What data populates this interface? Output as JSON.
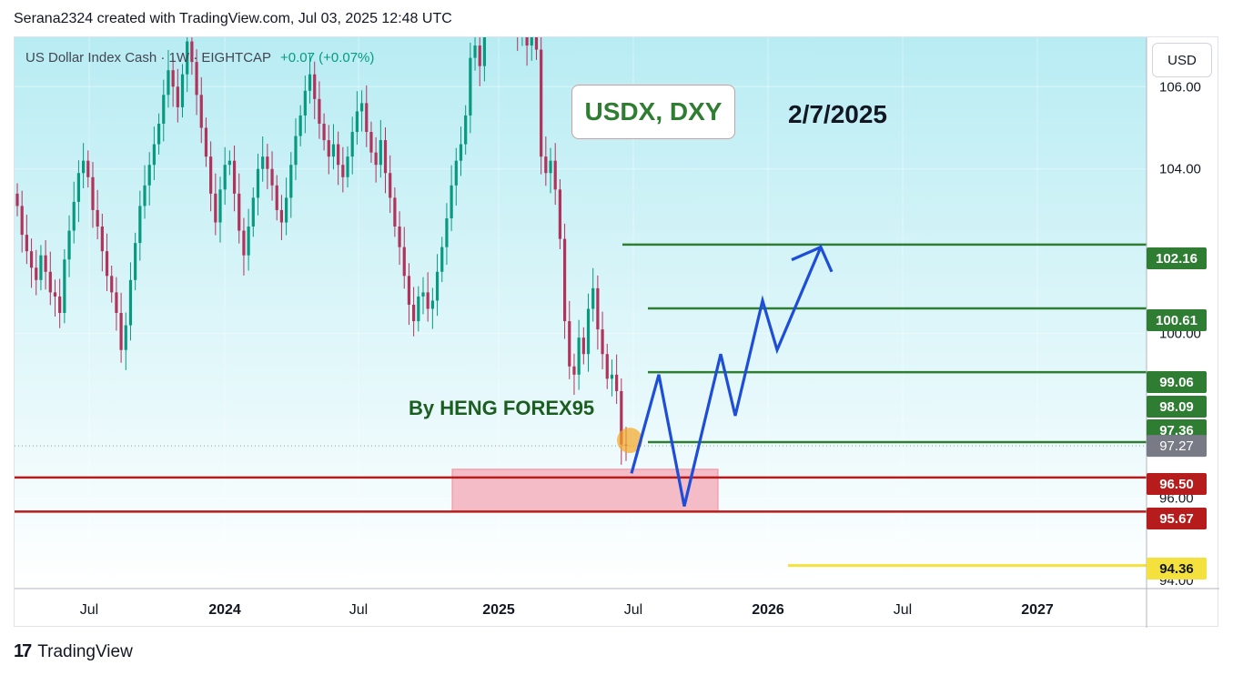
{
  "header": {
    "text": "Serana2324 created with TradingView.com, Jul 03, 2025 12:48 UTC"
  },
  "symbol": {
    "name": "US Dollar Index Cash · 1W · EIGHTCAP",
    "change": "+0.07 (+0.07%)"
  },
  "currency_button": "USD",
  "annotations": {
    "title": "USDX, DXY",
    "date": "2/7/2025",
    "author": "By HENG FOREX95"
  },
  "footer": {
    "logo": "17",
    "brand": "TradingView"
  },
  "colors": {
    "up": "#089981",
    "down": "#b2325a",
    "resistance": "#2e7d32",
    "support": "#b71c1c",
    "target": "#f5e13d",
    "projection": "#1e4ed8",
    "zone": "#f4a7b3",
    "bg_top": "#b8ecf3",
    "bg_bottom": "#ffffff"
  },
  "chart_data": {
    "type": "candlestick",
    "x_axis": {
      "ticks": [
        "Jul",
        "2024",
        "Jul",
        "2025",
        "Jul",
        "2026",
        "Jul",
        "2027"
      ]
    },
    "y_axis": {
      "ticks": [
        "106.00",
        "104.00",
        "100.00",
        "96.00",
        "94.00"
      ],
      "range": [
        93.8,
        107.2
      ]
    },
    "last_price": "97.27",
    "levels": [
      {
        "value": 102.16,
        "label": "102.16",
        "kind": "resistance"
      },
      {
        "value": 100.61,
        "label": "100.61",
        "kind": "resistance"
      },
      {
        "value": 99.06,
        "label": "99.06",
        "kind": "resistance"
      },
      {
        "value": 98.09,
        "label": "98.09",
        "kind": "resistance"
      },
      {
        "value": 97.36,
        "label": "97.36",
        "kind": "resistance"
      },
      {
        "value": 96.5,
        "label": "96.50",
        "kind": "support"
      },
      {
        "value": 95.67,
        "label": "95.67",
        "kind": "support"
      },
      {
        "value": 94.36,
        "label": "94.36",
        "kind": "target"
      }
    ],
    "support_zone": {
      "from": 95.67,
      "to": 96.7,
      "start": "2024-11",
      "end": "2025-10"
    },
    "projection_path": [
      96.6,
      99.0,
      95.8,
      99.5,
      98.0,
      100.8,
      99.6,
      102.1,
      101.5
    ],
    "candles_close": [
      103.1,
      102.4,
      102.0,
      101.6,
      101.3,
      101.9,
      101.5,
      101.0,
      100.9,
      100.5,
      101.8,
      102.5,
      103.2,
      103.9,
      104.2,
      103.8,
      103.0,
      102.6,
      102.0,
      101.4,
      101.0,
      100.5,
      99.6,
      100.2,
      101.3,
      102.2,
      103.1,
      103.6,
      104.1,
      104.6,
      105.1,
      105.8,
      106.4,
      106.0,
      105.5,
      106.3,
      107.1,
      106.6,
      105.8,
      105.0,
      104.3,
      103.4,
      102.7,
      103.5,
      104.1,
      104.2,
      103.4,
      102.5,
      101.9,
      102.6,
      103.3,
      104.0,
      104.3,
      104.0,
      103.6,
      103.0,
      102.7,
      103.3,
      104.1,
      104.8,
      105.3,
      105.9,
      106.3,
      105.7,
      105.1,
      104.7,
      104.3,
      104.6,
      104.1,
      103.8,
      104.3,
      104.9,
      105.4,
      105.6,
      104.9,
      104.4,
      104.1,
      104.7,
      103.9,
      103.3,
      102.6,
      102.1,
      101.4,
      100.7,
      100.3,
      100.9,
      101.0,
      100.6,
      100.8,
      101.5,
      102.1,
      102.8,
      103.6,
      104.2,
      104.6,
      105.3,
      106.7,
      107.0,
      106.5,
      107.6,
      108.1,
      107.9,
      109.0,
      108.5,
      108.8,
      108.0,
      107.3,
      107.5,
      107.0,
      107.6,
      106.9,
      104.3,
      103.9,
      104.2,
      103.5,
      102.3,
      100.3,
      99.2,
      99.0,
      99.9,
      99.5,
      100.6,
      101.1,
      100.1,
      99.5,
      98.9,
      99.0,
      98.6,
      97.3,
      97.27
    ]
  }
}
